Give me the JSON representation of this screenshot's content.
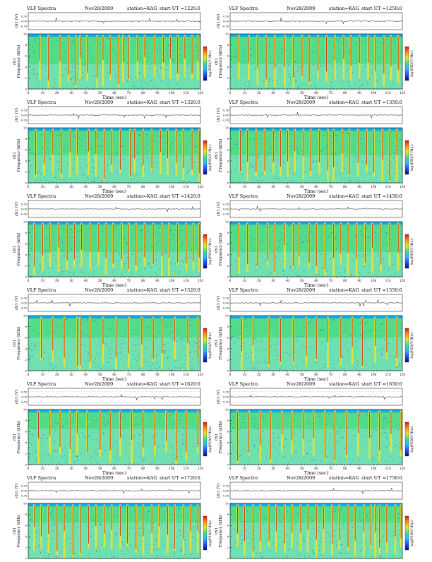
{
  "document": {
    "colors": {
      "background_field": "#6fe0b0",
      "cutoff_band": "#1aa6e6",
      "band_green": "#39d96b",
      "band_yellow": "#f2e22a",
      "streak_red": "#c42a16",
      "dot_blue": "#2c3fd6",
      "trace": "#000000",
      "colorbar": [
        "#08106b",
        "#1f4cff",
        "#2ab8ff",
        "#3fdc8a",
        "#e8e52a",
        "#ff8a1a",
        "#d81b12"
      ]
    }
  },
  "chart_data": [
    {
      "type": "heatmap",
      "title": {
        "instrument": "VLF Spectra",
        "date": "Nov28/2009",
        "station": "station=KAG",
        "start": "start UT =1220:0"
      },
      "ch_axis_label": "ch1 (V)",
      "ch_ticks": [
        "0.30",
        "0.00",
        "-0.30"
      ],
      "xlabel": "Time (sec)",
      "ylabel": "Frequency (kHz)",
      "ylabel_left": "ch1",
      "colorbar_label": "log(PSD(V²/Hz))",
      "xticks": [
        "0",
        "10",
        "20",
        "30",
        "40",
        "50",
        "60",
        "70",
        "80",
        "90",
        "100",
        "110",
        "120"
      ],
      "yticks": [
        "0",
        "2",
        "4",
        "6",
        "8",
        "10"
      ],
      "xlim": [
        0,
        120
      ],
      "ylim": [
        0,
        10
      ],
      "upper_band_khz": [
        4.5,
        9.5
      ],
      "streaks_sec": [
        8,
        14,
        22,
        28,
        33,
        36,
        41,
        48,
        52,
        57,
        63,
        66,
        70,
        76,
        81,
        88,
        94,
        99,
        104,
        109,
        114,
        118
      ]
    },
    {
      "type": "heatmap",
      "title": {
        "instrument": "VLF Spectra",
        "date": "Nov28/2009",
        "station": "station=KAG",
        "start": "start UT =1250:0"
      },
      "ch_axis_label": "ch1 (V)",
      "ch_ticks": [
        "0.30",
        "0.00",
        "-0.30"
      ],
      "xlabel": "Time (sec)",
      "ylabel": "Frequency (kHz)",
      "ylabel_left": "ch1",
      "colorbar_label": "log(PSD(V²/Hz))",
      "xticks": [
        "0",
        "10",
        "20",
        "30",
        "40",
        "50",
        "60",
        "70",
        "80",
        "90",
        "100",
        "110",
        "120"
      ],
      "yticks": [
        "0",
        "2",
        "4",
        "6",
        "8",
        "10"
      ],
      "xlim": [
        0,
        120
      ],
      "ylim": [
        0,
        10
      ],
      "upper_band_khz": [
        4.5,
        9.5
      ],
      "streaks_sec": [
        6,
        13,
        19,
        25,
        31,
        38,
        44,
        50,
        55,
        61,
        67,
        73,
        79,
        84,
        90,
        96,
        101,
        107,
        112,
        117
      ]
    },
    {
      "type": "heatmap",
      "title": {
        "instrument": "VLF Spectra",
        "date": "Nov28/2009",
        "station": "station=KAG",
        "start": "start UT =1320:0"
      },
      "ch_axis_label": "ch1 (V)",
      "ch_ticks": [
        "0.30",
        "0.00",
        "-0.30"
      ],
      "xlabel": "Time (sec)",
      "ylabel": "Frequency (kHz)",
      "ylabel_left": "ch1",
      "colorbar_label": "log(PSD(V²/Hz))",
      "xticks": [
        "0",
        "10",
        "20",
        "30",
        "40",
        "50",
        "60",
        "70",
        "80",
        "90",
        "100",
        "110",
        "120"
      ],
      "yticks": [
        "0",
        "2",
        "4",
        "6",
        "8",
        "10"
      ],
      "xlim": [
        0,
        120
      ],
      "ylim": [
        0,
        10
      ],
      "upper_band_khz": [
        5,
        9.5
      ],
      "streaks_sec": [
        5,
        11,
        17,
        23,
        29,
        34,
        42,
        47,
        53,
        58,
        64,
        71,
        74,
        80,
        86,
        92,
        97,
        103,
        108,
        114,
        119
      ]
    },
    {
      "type": "heatmap",
      "title": {
        "instrument": "VLF Spectra",
        "date": "Nov28/2009",
        "station": "station=KAG",
        "start": "start UT =1350:0"
      },
      "ch_axis_label": "ch1 (V)",
      "ch_ticks": [
        "0.30",
        "0.00",
        "-0.30"
      ],
      "xlabel": "Time (sec)",
      "ylabel": "Frequency (kHz)",
      "ylabel_left": "ch1",
      "colorbar_label": "log(PSD(V²/Hz))",
      "xticks": [
        "0",
        "10",
        "20",
        "30",
        "40",
        "50",
        "60",
        "70",
        "80",
        "90",
        "100",
        "110",
        "120"
      ],
      "yticks": [
        "0",
        "2",
        "4",
        "6",
        "8",
        "10"
      ],
      "xlim": [
        0,
        120
      ],
      "ylim": [
        0,
        10
      ],
      "upper_band_khz": [
        5,
        9.5
      ],
      "streaks_sec": [
        7,
        12,
        18,
        24,
        30,
        35,
        40,
        45,
        51,
        56,
        62,
        68,
        72,
        78,
        83,
        89,
        95,
        100,
        106,
        111,
        116
      ]
    },
    {
      "type": "heatmap",
      "title": {
        "instrument": "VLF Spectra",
        "date": "Nov28/2009",
        "station": "station=KAG",
        "start": "start UT =1420:0"
      },
      "ch_axis_label": "ch1 (V)",
      "ch_ticks": [
        "0.30",
        "0.00",
        "-0.30"
      ],
      "xlabel": "Time (sec)",
      "ylabel": "Frequency (kHz)",
      "ylabel_left": "ch1",
      "colorbar_label": "log(PSD(V²/Hz))",
      "xticks": [
        "0",
        "10",
        "20",
        "30",
        "40",
        "50",
        "60",
        "70",
        "80",
        "90",
        "100",
        "110",
        "120"
      ],
      "yticks": [
        "0",
        "2",
        "4",
        "6",
        "8",
        "10"
      ],
      "xlim": [
        0,
        120
      ],
      "ylim": [
        0,
        10
      ],
      "upper_band_khz": [
        4.5,
        9.5
      ],
      "streaks_sec": [
        4,
        10,
        15,
        21,
        27,
        32,
        37,
        43,
        49,
        54,
        59,
        65,
        70,
        75,
        81,
        87,
        93,
        98,
        104,
        110,
        115,
        119
      ]
    },
    {
      "type": "heatmap",
      "title": {
        "instrument": "VLF Spectra",
        "date": "Nov28/2009",
        "station": "station=KAG",
        "start": "start UT =1450:0"
      },
      "ch_axis_label": "ch1 (V)",
      "ch_ticks": [
        "0.30",
        "0.00",
        "-0.30"
      ],
      "xlabel": "Time (sec)",
      "ylabel": "Frequency (kHz)",
      "ylabel_left": "ch1",
      "colorbar_label": "log(PSD(V²/Hz))",
      "xticks": [
        "0",
        "10",
        "20",
        "30",
        "40",
        "50",
        "60",
        "70",
        "80",
        "90",
        "100",
        "110",
        "120"
      ],
      "yticks": [
        "0",
        "2",
        "4",
        "6",
        "8",
        "10"
      ],
      "xlim": [
        0,
        120
      ],
      "ylim": [
        0,
        10
      ],
      "upper_band_khz": [
        4.5,
        9.5
      ],
      "streaks_sec": [
        6,
        12,
        19,
        26,
        31,
        38,
        44,
        48,
        55,
        60,
        66,
        72,
        77,
        82,
        88,
        94,
        99,
        105,
        111,
        117
      ]
    },
    {
      "type": "heatmap",
      "title": {
        "instrument": "VLF Spectra",
        "date": "Nov28/2009",
        "station": "station=KAG",
        "start": "start UT =1520:0"
      },
      "ch_axis_label": "ch1 (V)",
      "ch_ticks": [
        "0.30",
        "0.00",
        "-0.30"
      ],
      "xlabel": "Time (sec)",
      "ylabel": "Frequency (kHz)",
      "ylabel_left": "ch1",
      "colorbar_label": "log(PSD(V²/Hz))",
      "xticks": [
        "0",
        "10",
        "20",
        "30",
        "40",
        "50",
        "60",
        "70",
        "80",
        "90",
        "100",
        "110",
        "120"
      ],
      "yticks": [
        "0",
        "2",
        "4",
        "6",
        "8",
        "10"
      ],
      "xlim": [
        0,
        120
      ],
      "ylim": [
        0,
        10
      ],
      "upper_band_khz": [
        6,
        9.5
      ],
      "streaks_sec": [
        9,
        17,
        25,
        34,
        36,
        43,
        52,
        61,
        70,
        79,
        87,
        93,
        102,
        111,
        118
      ]
    },
    {
      "type": "heatmap",
      "title": {
        "instrument": "VLF Spectra",
        "date": "Nov28/2009",
        "station": "station=KAG",
        "start": "start UT =1550:0"
      },
      "ch_axis_label": "ch1 (V)",
      "ch_ticks": [
        "0.30",
        "0.00",
        "-0.30"
      ],
      "xlabel": "Time (sec)",
      "ylabel": "Frequency (kHz)",
      "ylabel_left": "ch1",
      "colorbar_label": "log(PSD(V²/Hz))",
      "xticks": [
        "0",
        "10",
        "20",
        "30",
        "40",
        "50",
        "60",
        "70",
        "80",
        "90",
        "100",
        "110",
        "120"
      ],
      "yticks": [
        "0",
        "2",
        "4",
        "6",
        "8",
        "10"
      ],
      "xlim": [
        0,
        120
      ],
      "ylim": [
        0,
        10
      ],
      "upper_band_khz": [
        6,
        9.5
      ],
      "streaks_sec": [
        8,
        16,
        27,
        35,
        44,
        53,
        60,
        68,
        77,
        85,
        92,
        101,
        109,
        116
      ]
    },
    {
      "type": "heatmap",
      "title": {
        "instrument": "VLF Spectra",
        "date": "Nov28/2009",
        "station": "station=KAG",
        "start": "start UT =1620:0"
      },
      "ch_axis_label": "ch1 (V)",
      "ch_ticks": [
        "0.30",
        "0.00",
        "-0.30"
      ],
      "xlabel": "Time (sec)",
      "ylabel": "Frequency (kHz)",
      "ylabel_left": "ch1",
      "colorbar_label": "log(PSD(V²/Hz))",
      "xticks": [
        "0",
        "10",
        "20",
        "30",
        "40",
        "50",
        "60",
        "70",
        "80",
        "90",
        "100",
        "110",
        "120"
      ],
      "yticks": [
        "0",
        "2",
        "4",
        "6",
        "8",
        "10"
      ],
      "xlim": [
        0,
        120
      ],
      "ylim": [
        0,
        10
      ],
      "upper_band_khz": [
        6.5,
        9.5
      ],
      "streaks_sec": [
        7,
        15,
        22,
        29,
        34,
        41,
        50,
        57,
        64,
        72,
        80,
        88,
        96,
        103,
        110,
        118
      ]
    },
    {
      "type": "heatmap",
      "title": {
        "instrument": "VLF Spectra",
        "date": "Nov28/2009",
        "station": "station=KAG",
        "start": "start UT =1650:0"
      },
      "ch_axis_label": "ch1 (V)",
      "ch_ticks": [
        "0.30",
        "0.00",
        "-0.30"
      ],
      "xlabel": "Time (sec)",
      "ylabel": "Frequency (kHz)",
      "ylabel_left": "ch1",
      "colorbar_label": "log(PSD(V²/Hz))",
      "xticks": [
        "0",
        "10",
        "20",
        "30",
        "40",
        "50",
        "60",
        "70",
        "80",
        "90",
        "100",
        "110",
        "120"
      ],
      "yticks": [
        "0",
        "2",
        "4",
        "6",
        "8",
        "10"
      ],
      "xlim": [
        0,
        120
      ],
      "ylim": [
        0,
        10
      ],
      "upper_band_khz": [
        6.5,
        9.5
      ],
      "streaks_sec": [
        5,
        13,
        21,
        28,
        36,
        43,
        51,
        58,
        66,
        73,
        81,
        89,
        97,
        104,
        112,
        119
      ]
    },
    {
      "type": "heatmap",
      "title": {
        "instrument": "VLF Spectra",
        "date": "Nov28/2009",
        "station": "station=KAG",
        "start": "start UT =1720:0"
      },
      "ch_axis_label": "ch1 (V)",
      "ch_ticks": [
        "0.30",
        "0.00",
        "-0.30"
      ],
      "xlabel": "Time (sec)",
      "ylabel": "Frequency (kHz)",
      "ylabel_left": "ch1",
      "colorbar_label": "log(PSD(V²/Hz))",
      "xticks": [
        "0",
        "10",
        "20",
        "30",
        "40",
        "50",
        "60",
        "70",
        "80",
        "90",
        "100",
        "110",
        "120"
      ],
      "yticks": [
        "0",
        "2",
        "4",
        "6",
        "8",
        "10"
      ],
      "xlim": [
        0,
        120
      ],
      "ylim": [
        0,
        10
      ],
      "upper_band_khz": [
        6.5,
        9.5
      ],
      "streaks_sec": [
        4,
        9,
        14,
        20,
        25,
        31,
        36,
        42,
        47,
        53,
        58,
        64,
        69,
        75,
        80,
        86,
        91,
        97,
        102,
        108,
        113,
        118
      ]
    },
    {
      "type": "heatmap",
      "title": {
        "instrument": "VLF Spectra",
        "date": "Nov28/2009",
        "station": "station=KAG",
        "start": "start UT =1750:0"
      },
      "ch_axis_label": "ch1 (V)",
      "ch_ticks": [
        "0.30",
        "0.00",
        "-0.30"
      ],
      "xlabel": "Time (sec)",
      "ylabel": "Frequency (kHz)",
      "ylabel_left": "ch1",
      "colorbar_label": "log(PSD(V²/Hz))",
      "xticks": [
        "0",
        "10",
        "20",
        "30",
        "40",
        "50",
        "60",
        "70",
        "80",
        "90",
        "100",
        "110",
        "120"
      ],
      "yticks": [
        "0",
        "2",
        "4",
        "6",
        "8",
        "10"
      ],
      "xlim": [
        0,
        120
      ],
      "ylim": [
        0,
        10
      ],
      "upper_band_khz": [
        6.5,
        9.5
      ],
      "streaks_sec": [
        5,
        10,
        16,
        21,
        27,
        32,
        38,
        43,
        49,
        54,
        60,
        65,
        71,
        76,
        82,
        87,
        93,
        98,
        101,
        104,
        109,
        115,
        119
      ]
    }
  ]
}
